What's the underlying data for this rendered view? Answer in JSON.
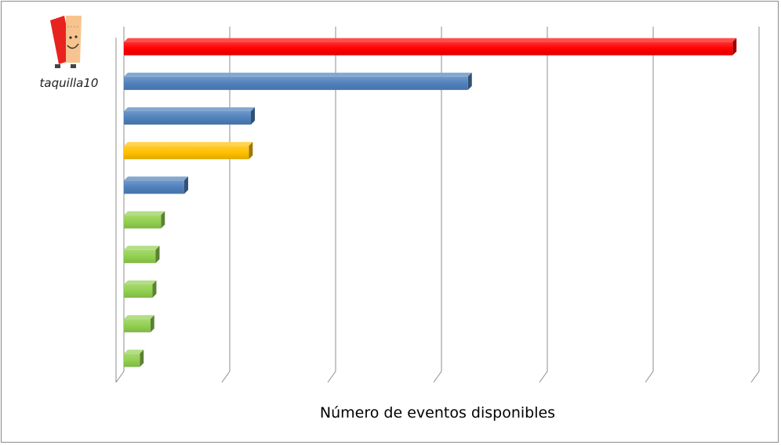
{
  "logo": {
    "text": "taquilla10"
  },
  "chart_data": {
    "type": "bar",
    "orientation": "horizontal",
    "style": "3d",
    "title": "",
    "xlabel": "Número de eventos disponibles",
    "ylabel": "",
    "xlim": [
      0,
      6
    ],
    "grid": true,
    "legend": "none",
    "categories": [
      "",
      "",
      "",
      "",
      "",
      "",
      "",
      "",
      "",
      ""
    ],
    "values": [
      5.75,
      3.25,
      1.2,
      1.18,
      0.57,
      0.35,
      0.3,
      0.27,
      0.25,
      0.15
    ],
    "colors": [
      "#ff0000",
      "#4f81bd",
      "#4f81bd",
      "#ffc000",
      "#4f81bd",
      "#92d050",
      "#92d050",
      "#92d050",
      "#92d050",
      "#92d050"
    ]
  }
}
